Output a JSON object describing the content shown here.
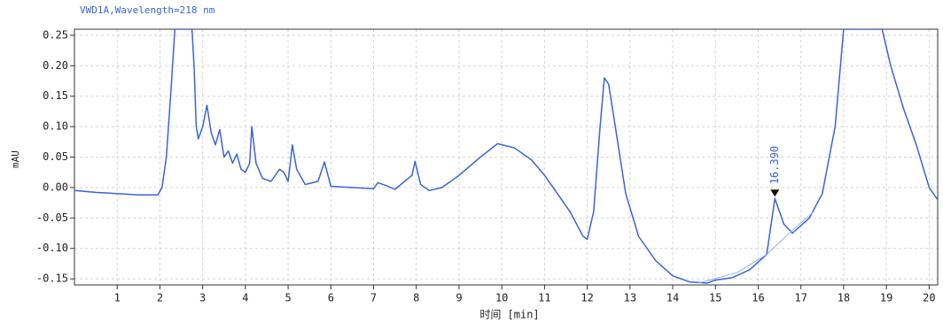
{
  "chart_data": {
    "type": "line",
    "title": "VWD1A,Wavelength=218 nm",
    "xlabel": "时间 [min]",
    "ylabel": "mAU",
    "xlim": [
      0,
      20.2
    ],
    "ylim": [
      -0.16,
      0.26
    ],
    "xticks": [
      1,
      2,
      3,
      4,
      5,
      6,
      7,
      8,
      9,
      10,
      11,
      12,
      13,
      14,
      15,
      16,
      17,
      18,
      19,
      20
    ],
    "yticks": [
      {
        "value": -0.15,
        "label": "-0.15"
      },
      {
        "value": -0.1,
        "label": "-0.10"
      },
      -0.05,
      {
        "value": 0,
        "label": "0.00"
      },
      0.05,
      {
        "value": 0.1,
        "label": "0.10"
      },
      0.15,
      {
        "value": 0.2,
        "label": "0.20"
      },
      0.25
    ],
    "grid": true,
    "series": [
      {
        "color": "#3a64d8",
        "x": [
          0,
          0.5,
          1,
          1.5,
          1.95,
          2.05,
          2.15,
          2.25,
          2.35,
          2.75,
          2.8,
          2.85,
          2.9,
          3.0,
          3.1,
          3.2,
          3.3,
          3.4,
          3.5,
          3.6,
          3.7,
          3.8,
          3.9,
          4.0,
          4.1,
          4.15,
          4.25,
          4.4,
          4.6,
          4.8,
          4.9,
          5.0,
          5.1,
          5.2,
          5.4,
          5.7,
          5.85,
          6.0,
          6.5,
          7.0,
          7.1,
          7.3,
          7.5,
          7.9,
          7.97,
          8.1,
          8.3,
          8.6,
          9.0,
          9.5,
          9.9,
          10.3,
          10.7,
          11.0,
          11.3,
          11.6,
          11.9,
          12.0,
          12.15,
          12.3,
          12.4,
          12.5,
          12.7,
          12.9,
          13.2,
          13.6,
          14.0,
          14.4,
          14.8,
          15.0,
          15.4,
          15.8,
          16.2,
          16.39,
          16.6,
          16.8,
          17.2,
          17.5,
          17.8,
          18.0,
          18.9,
          19.1,
          19.4,
          19.7,
          20.0,
          20.2
        ],
        "values": [
          -0.005,
          -0.008,
          -0.01,
          -0.012,
          -0.012,
          0.0,
          0.05,
          0.15,
          0.26,
          0.26,
          0.2,
          0.1,
          0.08,
          0.1,
          0.135,
          0.09,
          0.07,
          0.095,
          0.05,
          0.06,
          0.04,
          0.055,
          0.03,
          0.025,
          0.04,
          0.1,
          0.04,
          0.015,
          0.01,
          0.03,
          0.025,
          0.01,
          0.07,
          0.03,
          0.005,
          0.01,
          0.042,
          0.002,
          0.0,
          -0.002,
          0.008,
          0.003,
          -0.003,
          0.02,
          0.043,
          0.005,
          -0.005,
          0.0,
          0.02,
          0.05,
          0.072,
          0.065,
          0.045,
          0.02,
          -0.01,
          -0.04,
          -0.08,
          -0.085,
          -0.04,
          0.1,
          0.18,
          0.17,
          0.08,
          -0.01,
          -0.08,
          -0.12,
          -0.145,
          -0.155,
          -0.157,
          -0.152,
          -0.148,
          -0.135,
          -0.11,
          -0.018,
          -0.06,
          -0.075,
          -0.05,
          -0.01,
          0.1,
          0.26,
          0.26,
          0.2,
          0.13,
          0.07,
          0.0,
          -0.02
        ]
      },
      {
        "color": "#8fb0f0",
        "x": [
          14.6,
          15.5,
          16.2,
          16.8,
          17.3
        ],
        "values": [
          -0.157,
          -0.14,
          -0.11,
          -0.07,
          -0.04
        ]
      }
    ],
    "annotations": [
      {
        "text": "16.390",
        "x": 16.39,
        "y": -0.018
      }
    ]
  }
}
